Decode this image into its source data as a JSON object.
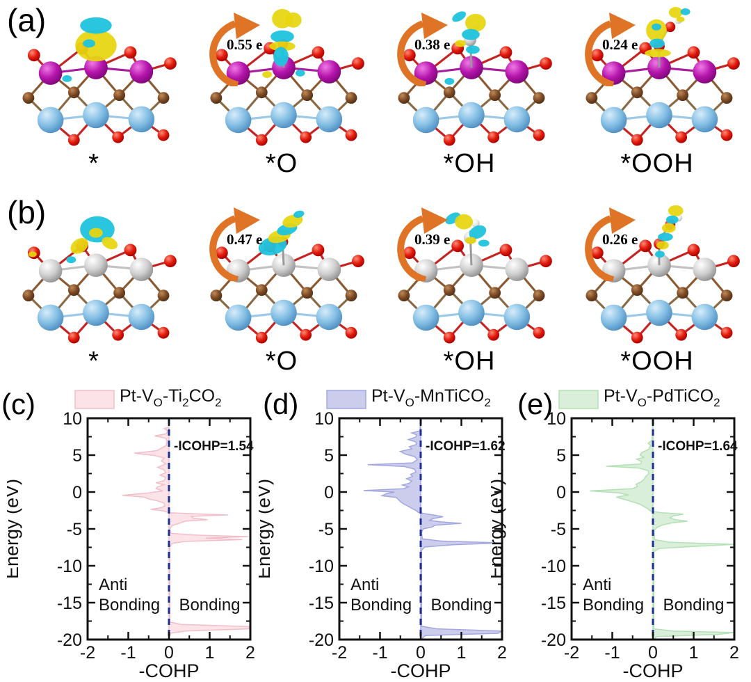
{
  "figure": {
    "rows": [
      {
        "panel_label": "(a)",
        "structures": [
          {
            "label": "*",
            "charge": null
          },
          {
            "label": "*O",
            "charge": "0.55 e"
          },
          {
            "label": "*OH",
            "charge": "0.38 e"
          },
          {
            "label": "*OOH",
            "charge": "0.24 e"
          }
        ]
      },
      {
        "panel_label": "(b)",
        "structures": [
          {
            "label": "*",
            "charge": null
          },
          {
            "label": "*O",
            "charge": "0.47 e"
          },
          {
            "label": "*OH",
            "charge": "0.39 e"
          },
          {
            "label": "*OOH",
            "charge": "0.26 e"
          }
        ]
      }
    ],
    "arrow_color": "#df7426"
  },
  "chart_data": [
    {
      "type": "area",
      "panel_label": "(c)",
      "series_name": "Pt-VO-Ti2CO2",
      "legend_parts": [
        [
          "Pt-V",
          0
        ],
        [
          "O",
          1
        ],
        [
          "-Ti",
          0
        ],
        [
          "2",
          1
        ],
        [
          "CO",
          0
        ],
        [
          "2",
          1
        ]
      ],
      "icohp": 1.54,
      "icohp_label": "-ICOHP=1.54",
      "xlabel": "-COHP",
      "ylabel": "Energy (eV)",
      "xlim": [
        -2,
        2
      ],
      "ylim": [
        -20,
        10
      ],
      "xticks": [
        -2,
        -1,
        0,
        1,
        2
      ],
      "yticks": [
        10,
        5,
        0,
        -5,
        -10,
        -15,
        -20
      ],
      "region_labels": {
        "left": [
          "Anti",
          "Bonding"
        ],
        "right": "Bonding"
      },
      "fill_color": "#fbe3e7",
      "line_color": "#f0bfc9",
      "dash_color": "#1b2f9b",
      "points": [
        [
          10,
          0
        ],
        [
          8.8,
          0
        ],
        [
          8.6,
          -0.12
        ],
        [
          8.3,
          -0.04
        ],
        [
          7.9,
          -0.06
        ],
        [
          7.6,
          -0.35
        ],
        [
          7.3,
          -0.08
        ],
        [
          6.9,
          -0.05
        ],
        [
          6.3,
          -0.07
        ],
        [
          5.6,
          -0.3
        ],
        [
          5.25,
          -0.85
        ],
        [
          4.95,
          -0.35
        ],
        [
          4.6,
          -0.12
        ],
        [
          4.2,
          -0.18
        ],
        [
          3.8,
          -0.08
        ],
        [
          3.35,
          -0.28
        ],
        [
          3.0,
          -0.12
        ],
        [
          2.6,
          -0.08
        ],
        [
          2.3,
          -0.22
        ],
        [
          2.0,
          -0.08
        ],
        [
          1.55,
          -0.12
        ],
        [
          1.25,
          -0.32
        ],
        [
          1.0,
          -0.12
        ],
        [
          0.7,
          -0.28
        ],
        [
          0.45,
          -0.32
        ],
        [
          0.15,
          -0.15
        ],
        [
          -0.15,
          -0.55
        ],
        [
          -0.45,
          -1.15
        ],
        [
          -0.7,
          -0.6
        ],
        [
          -0.95,
          -0.5
        ],
        [
          -1.2,
          -0.28
        ],
        [
          -1.5,
          -0.12
        ],
        [
          -1.9,
          -0.1
        ],
        [
          -2.15,
          -0.2
        ],
        [
          -2.35,
          -0.45
        ],
        [
          -2.55,
          -0.15
        ],
        [
          -2.8,
          0.0
        ],
        [
          -2.95,
          0.6
        ],
        [
          -3.1,
          1.45
        ],
        [
          -3.3,
          0.55
        ],
        [
          -3.55,
          0.6
        ],
        [
          -3.75,
          0.95
        ],
        [
          -3.95,
          0.4
        ],
        [
          -4.25,
          0.25
        ],
        [
          -4.55,
          0.08
        ],
        [
          -5.0,
          0.02
        ],
        [
          -5.6,
          0.05
        ],
        [
          -5.85,
          0.7
        ],
        [
          -6.05,
          1.95
        ],
        [
          -6.25,
          0.9
        ],
        [
          -6.45,
          1.8
        ],
        [
          -6.7,
          0.4
        ],
        [
          -6.95,
          0.08
        ],
        [
          -7.4,
          0.02
        ],
        [
          -17.6,
          0.02
        ],
        [
          -17.95,
          0.3
        ],
        [
          -18.25,
          2.0
        ],
        [
          -18.55,
          1.95
        ],
        [
          -18.85,
          0.4
        ],
        [
          -19.15,
          0.04
        ],
        [
          -20,
          0
        ]
      ]
    },
    {
      "type": "area",
      "panel_label": "(d)",
      "series_name": "Pt-VO-MnTiCO2",
      "legend_parts": [
        [
          "Pt-V",
          0
        ],
        [
          "O",
          1
        ],
        [
          "-MnTiCO",
          0
        ],
        [
          "2",
          1
        ]
      ],
      "icohp": 1.62,
      "icohp_label": "-ICOHP=1.62",
      "xlabel": "-COHP",
      "ylabel": "Energy (eV)",
      "xlim": [
        -2,
        2
      ],
      "ylim": [
        -20,
        10
      ],
      "xticks": [
        -2,
        -1,
        0,
        1,
        2
      ],
      "yticks": [
        10,
        5,
        0,
        -5,
        -10,
        -15,
        -20
      ],
      "region_labels": {
        "left": [
          "Anti",
          "Bonding"
        ],
        "right": "Bonding"
      },
      "fill_color": "#cccded",
      "line_color": "#a3a7e0",
      "dash_color": "#1b2f9b",
      "points": [
        [
          10,
          0
        ],
        [
          8.3,
          -0.02
        ],
        [
          8.0,
          -0.22
        ],
        [
          7.75,
          -0.1
        ],
        [
          7.45,
          -0.12
        ],
        [
          7.1,
          -0.3
        ],
        [
          6.8,
          -0.12
        ],
        [
          6.45,
          -0.1
        ],
        [
          6.15,
          -0.28
        ],
        [
          5.85,
          -0.22
        ],
        [
          5.5,
          -0.5
        ],
        [
          5.15,
          -0.38
        ],
        [
          4.8,
          -0.15
        ],
        [
          4.4,
          -0.08
        ],
        [
          3.95,
          -0.2
        ],
        [
          3.7,
          -1.3
        ],
        [
          3.45,
          -0.4
        ],
        [
          3.1,
          -0.15
        ],
        [
          2.7,
          -0.12
        ],
        [
          2.4,
          -0.25
        ],
        [
          2.1,
          -0.2
        ],
        [
          1.8,
          -0.35
        ],
        [
          1.5,
          -0.22
        ],
        [
          1.2,
          -0.28
        ],
        [
          0.95,
          -0.45
        ],
        [
          0.7,
          -0.3
        ],
        [
          0.45,
          -0.42
        ],
        [
          0.2,
          -1.4
        ],
        [
          0.0,
          -0.65
        ],
        [
          -0.25,
          -0.85
        ],
        [
          -0.5,
          -0.95
        ],
        [
          -0.75,
          -0.6
        ],
        [
          -1.0,
          -0.55
        ],
        [
          -1.3,
          -0.5
        ],
        [
          -1.6,
          -0.42
        ],
        [
          -1.9,
          -0.32
        ],
        [
          -2.2,
          -0.22
        ],
        [
          -2.5,
          -0.12
        ],
        [
          -2.75,
          -0.06
        ],
        [
          -2.95,
          0.12
        ],
        [
          -3.15,
          0.35
        ],
        [
          -3.35,
          0.55
        ],
        [
          -3.6,
          0.3
        ],
        [
          -3.85,
          0.22
        ],
        [
          -4.05,
          0.5
        ],
        [
          -4.25,
          1.0
        ],
        [
          -4.5,
          0.35
        ],
        [
          -4.75,
          0.28
        ],
        [
          -5.0,
          0.06
        ],
        [
          -5.5,
          0.02
        ],
        [
          -6.35,
          0.04
        ],
        [
          -6.65,
          0.5
        ],
        [
          -6.9,
          2.0
        ],
        [
          -7.15,
          0.8
        ],
        [
          -7.45,
          0.1
        ],
        [
          -7.9,
          0.02
        ],
        [
          -18.2,
          0.02
        ],
        [
          -18.55,
          0.4
        ],
        [
          -18.85,
          2.0
        ],
        [
          -19.15,
          1.9
        ],
        [
          -19.45,
          0.12
        ],
        [
          -20,
          0
        ]
      ]
    },
    {
      "type": "area",
      "panel_label": "(e)",
      "series_name": "Pt-VO-PdTiCO2",
      "legend_parts": [
        [
          "Pt-V",
          0
        ],
        [
          "O",
          1
        ],
        [
          "-PdTiCO",
          0
        ],
        [
          "2",
          1
        ]
      ],
      "icohp": 1.64,
      "icohp_label": "-ICOHP=1.64",
      "xlabel": "-COHP",
      "ylabel": "Energy (eV)",
      "xlim": [
        -2,
        2
      ],
      "ylim": [
        -20,
        10
      ],
      "xticks": [
        -2,
        -1,
        0,
        1,
        2
      ],
      "yticks": [
        10,
        5,
        0,
        -5,
        -10,
        -15,
        -20
      ],
      "region_labels": {
        "left": [
          "Anti",
          "Bonding"
        ],
        "right": "Bonding"
      },
      "fill_color": "#d9efd9",
      "line_color": "#b3e0b5",
      "dash_color": "#1b2f9b",
      "points": [
        [
          10,
          0
        ],
        [
          7.0,
          -0.02
        ],
        [
          6.6,
          -0.12
        ],
        [
          6.3,
          -0.06
        ],
        [
          5.8,
          -0.1
        ],
        [
          5.35,
          -0.28
        ],
        [
          5.0,
          -0.32
        ],
        [
          4.7,
          -0.22
        ],
        [
          4.45,
          -0.4
        ],
        [
          4.1,
          -0.28
        ],
        [
          3.8,
          -0.3
        ],
        [
          3.5,
          -1.15
        ],
        [
          3.25,
          -0.35
        ],
        [
          2.9,
          -0.12
        ],
        [
          2.5,
          -0.1
        ],
        [
          2.1,
          -0.18
        ],
        [
          1.7,
          -0.22
        ],
        [
          1.35,
          -0.3
        ],
        [
          1.05,
          -0.42
        ],
        [
          0.75,
          -0.38
        ],
        [
          0.45,
          -0.5
        ],
        [
          0.15,
          -1.55
        ],
        [
          -0.1,
          -0.85
        ],
        [
          -0.4,
          -0.6
        ],
        [
          -0.7,
          -0.9
        ],
        [
          -1.0,
          -0.7
        ],
        [
          -1.3,
          -0.52
        ],
        [
          -1.6,
          -0.35
        ],
        [
          -1.95,
          -0.22
        ],
        [
          -2.3,
          -0.12
        ],
        [
          -2.6,
          -0.05
        ],
        [
          -2.8,
          0.2
        ],
        [
          -3.0,
          0.75
        ],
        [
          -3.25,
          0.5
        ],
        [
          -3.5,
          0.42
        ],
        [
          -3.75,
          0.55
        ],
        [
          -3.95,
          0.85
        ],
        [
          -4.2,
          0.45
        ],
        [
          -4.5,
          0.22
        ],
        [
          -4.8,
          0.1
        ],
        [
          -5.2,
          0.03
        ],
        [
          -6.45,
          0.04
        ],
        [
          -6.8,
          0.4
        ],
        [
          -7.1,
          2.0
        ],
        [
          -7.35,
          1.1
        ],
        [
          -7.65,
          0.15
        ],
        [
          -8.1,
          0.02
        ],
        [
          -18.55,
          0.02
        ],
        [
          -18.85,
          0.5
        ],
        [
          -19.05,
          2.0
        ],
        [
          -19.3,
          1.6
        ],
        [
          -19.6,
          0.1
        ],
        [
          -20,
          0
        ]
      ]
    }
  ]
}
